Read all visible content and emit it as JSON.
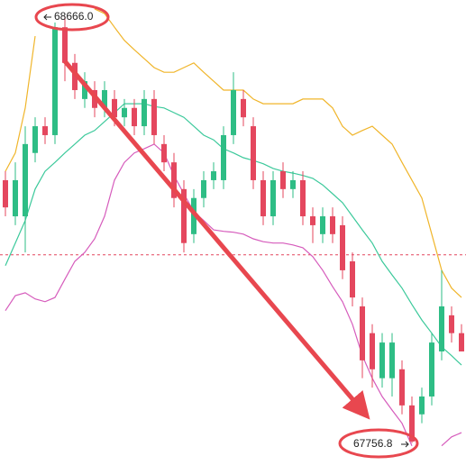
{
  "chart_data": {
    "type": "candlestick",
    "ylim": [
      67710,
      68701
    ],
    "up_color": "#2ebd85",
    "down_color": "#e4475e",
    "open": [
      68317,
      68240,
      68240,
      68375,
      68432,
      68413,
      68643,
      68567,
      68490,
      68509,
      68471,
      68490,
      68451,
      68471,
      68432,
      68490,
      68394,
      68355,
      68298,
      68202,
      68279,
      68317,
      68317,
      68413,
      68490,
      68432,
      68317,
      68240,
      68336,
      68298,
      68317,
      68240,
      68202,
      68240,
      68221,
      68144,
      68048,
      67991,
      67895,
      67895,
      67914,
      67837,
      67818,
      67856,
      67952,
      68029,
      67991
    ],
    "high": [
      68336,
      68355,
      68432,
      68451,
      68451,
      68653,
      68666.0,
      68586,
      68547,
      68528,
      68528,
      68509,
      68490,
      68490,
      68509,
      68509,
      68413,
      68375,
      68317,
      68298,
      68336,
      68355,
      68432,
      68547,
      68509,
      68451,
      68336,
      68336,
      68355,
      68336,
      68336,
      68259,
      68259,
      68259,
      68240,
      68163,
      68067,
      68010,
      67991,
      67991,
      67933,
      67856,
      67875,
      67991,
      68125,
      68048,
      68010
    ],
    "low": [
      68240,
      68221,
      68163,
      68355,
      68394,
      68394,
      68528,
      68490,
      68471,
      68451,
      68451,
      68432,
      68432,
      68413,
      68413,
      68394,
      68336,
      68259,
      68163,
      68183,
      68259,
      68298,
      68298,
      68394,
      68432,
      68298,
      68221,
      68221,
      68279,
      68279,
      68221,
      68183,
      68183,
      68183,
      68106,
      68048,
      67895,
      67875,
      67875,
      67856,
      67818,
      67756.8,
      67799,
      67837,
      67933,
      67971,
      67952
    ],
    "close": [
      68259,
      68317,
      68394,
      68432,
      68413,
      68643,
      68567,
      68509,
      68528,
      68471,
      68509,
      68451,
      68471,
      68432,
      68490,
      68413,
      68355,
      68279,
      68183,
      68279,
      68317,
      68336,
      68413,
      68509,
      68451,
      68317,
      68240,
      68317,
      68298,
      68317,
      68240,
      68221,
      68240,
      68202,
      68125,
      68067,
      67933,
      67914,
      67971,
      67971,
      67837,
      67760,
      67856,
      67971,
      68048,
      67991,
      67952
    ],
    "bands": [
      {
        "color": "#f0b52a",
        "values": [
          68336,
          68375,
          68471,
          68624,
          null,
          null,
          null,
          null,
          null,
          68682,
          68672,
          68643,
          68615,
          68595,
          68576,
          68557,
          68547,
          68547,
          68557,
          68567,
          68547,
          68528,
          68509,
          68509,
          68509,
          68490,
          68480,
          68480,
          68480,
          68480,
          68490,
          68490,
          68490,
          68471,
          68432,
          68413,
          68423,
          68432,
          68413,
          68394,
          68355,
          68317,
          68279,
          68202,
          68125,
          68087,
          68067
        ]
      },
      {
        "color": "#3cc99b",
        "values": [
          68135,
          68183,
          68231,
          68298,
          68336,
          68355,
          68375,
          68394,
          68413,
          68423,
          68442,
          68461,
          68480,
          68480,
          68480,
          68474,
          68471,
          68461,
          68451,
          68432,
          68413,
          68403,
          68384,
          68375,
          68365,
          68359,
          68352,
          68342,
          68336,
          68332,
          68327,
          68321,
          68307,
          68288,
          68269,
          68240,
          68211,
          68183,
          68144,
          68115,
          68087,
          68052,
          68019,
          67991,
          67962,
          67943,
          67923
        ]
      },
      {
        "color": "#d65cbc",
        "values": [
          68039,
          68071,
          68077,
          68064,
          68058,
          68067,
          68106,
          68144,
          68163,
          68192,
          68240,
          68317,
          68355,
          68375,
          68384,
          68394,
          68375,
          68327,
          68288,
          68250,
          68231,
          68211,
          68208,
          68206,
          68202,
          68192,
          68186,
          68183,
          68183,
          68179,
          68173,
          68154,
          68125,
          68090,
          68058,
          68010,
          67943,
          67895,
          67856,
          67827,
          67799,
          67751,
          null,
          null,
          67751,
          67770,
          67779
        ]
      }
    ],
    "price_line": 68158,
    "high_label": "68666.0",
    "low_label": "67756.8"
  }
}
